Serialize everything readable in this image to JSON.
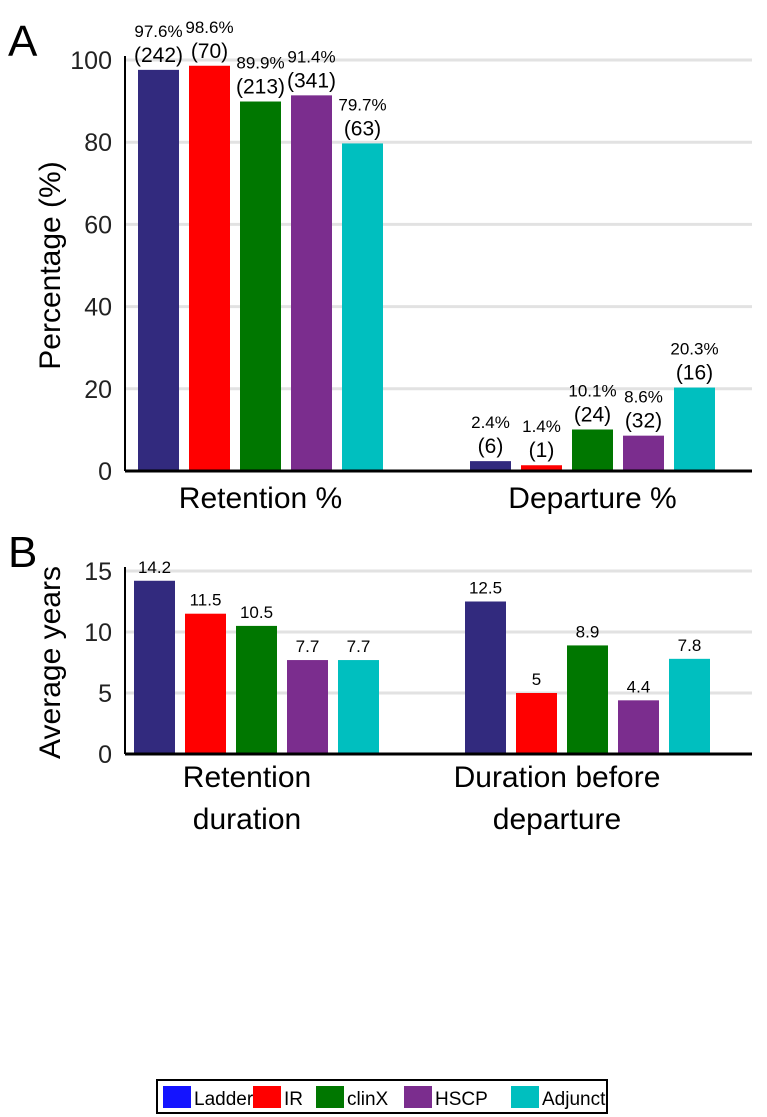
{
  "legend": [
    {
      "label": "Ladder",
      "color": "#1414ff"
    },
    {
      "label": "IR",
      "color": "#ff0000"
    },
    {
      "label": "clinX",
      "color": "#007700"
    },
    {
      "label": "HSCP",
      "color": "#7b2d8e"
    },
    {
      "label": "Adjunct",
      "color": "#00bfbf"
    }
  ],
  "chart_data": [
    {
      "panel": "A",
      "type": "bar",
      "ylabel": "Percentage (%)",
      "xlabel": "",
      "ylim": [
        0,
        100
      ],
      "yticks": [
        0,
        20,
        40,
        60,
        80,
        100
      ],
      "grid": "horizontal",
      "categories": [
        [
          "Retention %"
        ],
        [
          "Departure %"
        ]
      ],
      "series_colors": [
        "#322a7e",
        "#ff0000",
        "#007700",
        "#7b2d8e",
        "#00bfbf"
      ],
      "values": [
        [
          97.6,
          98.6,
          89.9,
          91.4,
          79.7
        ],
        [
          2.4,
          1.4,
          10.1,
          8.6,
          20.3
        ]
      ],
      "labels": [
        [
          [
            "97.6%",
            "(242)"
          ],
          [
            "98.6%",
            "(70)"
          ],
          [
            "89.9%",
            "(213)"
          ],
          [
            "91.4%",
            "(341)"
          ],
          [
            "79.7%",
            "(63)"
          ]
        ],
        [
          [
            "2.4%",
            "(6)"
          ],
          [
            "1.4%",
            "(1)"
          ],
          [
            "10.1%",
            "(24)"
          ],
          [
            "8.6%",
            "(32)"
          ],
          [
            "20.3%",
            "(16)"
          ]
        ]
      ]
    },
    {
      "panel": "B",
      "type": "bar",
      "ylabel": "Average years",
      "xlabel": "",
      "ylim": [
        0,
        15
      ],
      "yticks": [
        0,
        5,
        10,
        15
      ],
      "grid": "horizontal",
      "categories": [
        [
          "Retention",
          "duration"
        ],
        [
          "Duration before",
          "departure"
        ]
      ],
      "series_colors": [
        "#322a7e",
        "#ff0000",
        "#007700",
        "#7b2d8e",
        "#00bfbf"
      ],
      "values": [
        [
          14.2,
          11.5,
          10.5,
          7.7,
          7.7
        ],
        [
          12.5,
          5,
          8.9,
          4.4,
          7.8
        ]
      ],
      "labels": [
        [
          [
            "14.2"
          ],
          [
            "11.5"
          ],
          [
            "10.5"
          ],
          [
            "7.7"
          ],
          [
            "7.7"
          ]
        ],
        [
          [
            "12.5"
          ],
          [
            "5"
          ],
          [
            "8.9"
          ],
          [
            "4.4"
          ],
          [
            "7.8"
          ]
        ]
      ]
    }
  ]
}
